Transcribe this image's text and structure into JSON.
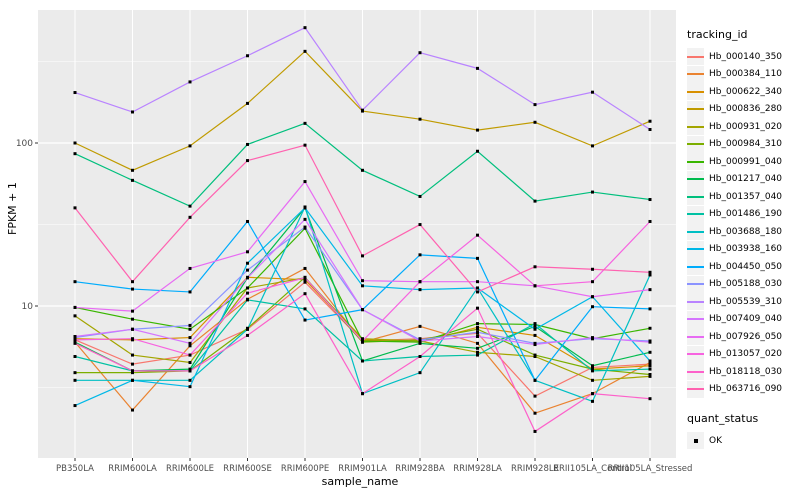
{
  "chart_data": {
    "type": "line",
    "title": "",
    "xlabel": "sample_name",
    "ylabel": "FPKM + 1",
    "y_scale": "log10",
    "ylim": [
      1.15,
      650
    ],
    "y_ticks": [
      10,
      100
    ],
    "grid": "on",
    "legend_position": "right",
    "legend_title": "tracking_id",
    "marker": "black-square",
    "quant_status": {
      "title": "quant_status",
      "items": [
        "OK"
      ]
    },
    "categories": [
      "PB350LA",
      "RRIM600LA",
      "RRIM600LE",
      "RRIM600SE",
      "RRIM600PE",
      "RRIM901LA",
      "RRIM928BA",
      "RRIM928LA",
      "RRIM928LE",
      "RRII105LA_Control",
      "RRII105LA_Stressed"
    ],
    "series": [
      {
        "name": "Hb_000140_350",
        "color": "#F8766D",
        "values": [
          6.2,
          4.4,
          5.0,
          7.2,
          14.0,
          6.1,
          6.3,
          6.8,
          2.8,
          4.2,
          4.4
        ]
      },
      {
        "name": "Hb_000384_110",
        "color": "#EA8331",
        "values": [
          6.0,
          2.3,
          5.7,
          11.0,
          17.0,
          6.0,
          7.5,
          5.9,
          2.2,
          2.9,
          4.5
        ]
      },
      {
        "name": "Hb_000622_340",
        "color": "#D89000",
        "values": [
          6.3,
          6.2,
          6.4,
          15.0,
          14.5,
          6.2,
          6.0,
          7.4,
          6.6,
          4.1,
          4.3
        ]
      },
      {
        "name": "Hb_000836_280",
        "color": "#C09B00",
        "values": [
          100,
          68,
          96,
          175,
          365,
          157,
          140,
          120,
          134,
          96,
          136
        ]
      },
      {
        "name": "Hb_000931_020",
        "color": "#A3A500",
        "values": [
          8.7,
          5.0,
          4.5,
          12.9,
          14.9,
          6.3,
          6.1,
          5.2,
          4.9,
          3.5,
          3.7
        ]
      },
      {
        "name": "Hb_000984_310",
        "color": "#7CAE00",
        "values": [
          3.9,
          3.9,
          4.0,
          7.3,
          15.0,
          6.0,
          6.2,
          7.2,
          5.0,
          4.1,
          3.8
        ]
      },
      {
        "name": "Hb_000991_040",
        "color": "#39B600",
        "values": [
          9.8,
          8.3,
          7.2,
          12.9,
          30.0,
          6.1,
          6.0,
          7.8,
          7.7,
          6.3,
          7.3
        ]
      },
      {
        "name": "Hb_001217_040",
        "color": "#00BB4E",
        "values": [
          6.0,
          4.0,
          4.1,
          14.9,
          40.0,
          4.6,
          5.9,
          5.5,
          7.5,
          4.3,
          5.2
        ]
      },
      {
        "name": "Hb_001357_040",
        "color": "#00BF7D",
        "values": [
          86,
          59,
          41,
          98,
          132,
          68,
          47,
          89,
          44,
          50,
          45
        ]
      },
      {
        "name": "Hb_001486_190",
        "color": "#00C1A3",
        "values": [
          4.9,
          4.0,
          4.0,
          10.9,
          9.6,
          4.6,
          4.9,
          5.0,
          7.8,
          4.0,
          4.1
        ]
      },
      {
        "name": "Hb_003688_180",
        "color": "#00BFC4",
        "values": [
          3.5,
          3.5,
          3.5,
          7.2,
          40.5,
          2.9,
          3.9,
          12.9,
          3.5,
          2.6,
          15.5
        ]
      },
      {
        "name": "Hb_003938_160",
        "color": "#00B8E7",
        "values": [
          2.45,
          3.5,
          3.2,
          18.3,
          40.0,
          13.3,
          12.6,
          12.9,
          7.2,
          11.4,
          4.6
        ]
      },
      {
        "name": "Hb_004450_050",
        "color": "#00ACFC",
        "values": [
          14.1,
          12.7,
          12.2,
          33.0,
          8.2,
          9.5,
          20.6,
          19.6,
          3.5,
          9.9,
          9.6
        ]
      },
      {
        "name": "Hb_005188_030",
        "color": "#8B93FF",
        "values": [
          6.4,
          7.2,
          7.6,
          16.6,
          30.5,
          9.5,
          6.2,
          6.9,
          5.9,
          6.3,
          6.1
        ]
      },
      {
        "name": "Hb_005539_310",
        "color": "#B983FF",
        "values": [
          204,
          155,
          237,
          343,
          510,
          159,
          358,
          287,
          172,
          205,
          121
        ]
      },
      {
        "name": "Hb_007409_040",
        "color": "#D575FE",
        "values": [
          6.5,
          7.2,
          5.9,
          14.9,
          34.0,
          9.5,
          6.1,
          6.5,
          5.8,
          6.4,
          6.0
        ]
      },
      {
        "name": "Hb_007926_050",
        "color": "#E76BF3",
        "values": [
          9.8,
          9.3,
          17.0,
          21.5,
          58.0,
          14.3,
          14.1,
          14.1,
          13.3,
          11.4,
          12.6
        ]
      },
      {
        "name": "Hb_013057_020",
        "color": "#F763E0",
        "values": [
          6.2,
          6.3,
          5.0,
          12.0,
          14.9,
          6.1,
          14.1,
          27.2,
          13.3,
          14.1,
          33.0
        ]
      },
      {
        "name": "Hb_018118_030",
        "color": "#FD61CA",
        "values": [
          5.9,
          4.0,
          4.0,
          6.6,
          11.9,
          2.9,
          4.9,
          9.7,
          1.7,
          2.9,
          2.7
        ]
      },
      {
        "name": "Hb_063716_090",
        "color": "#FF62B0",
        "values": [
          40,
          14.1,
          35,
          78,
          97,
          20.3,
          31.6,
          12.2,
          17.4,
          16.8,
          16.1
        ]
      }
    ]
  }
}
